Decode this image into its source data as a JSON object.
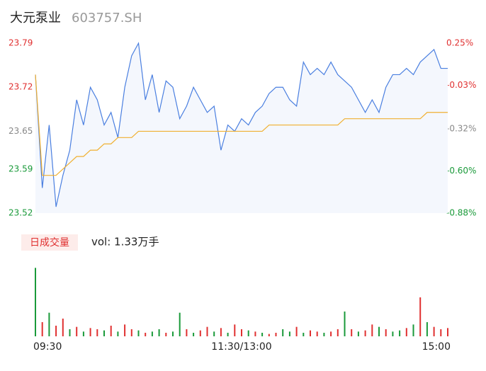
{
  "chart_data": {
    "type": "intraday",
    "title": "大元泵业",
    "code": "603757.SH",
    "x": [
      0,
      4,
      8,
      12,
      16,
      20,
      24,
      28,
      32,
      36,
      40,
      44,
      48,
      52,
      56,
      60,
      64,
      68,
      72,
      76,
      80,
      84,
      88,
      92,
      96,
      100,
      104,
      108,
      112,
      116,
      120,
      124,
      128,
      132,
      136,
      140,
      144,
      148,
      152,
      156,
      160,
      164,
      168,
      172,
      176,
      180,
      184,
      188,
      192,
      196,
      200,
      204,
      208,
      212,
      216,
      220,
      224,
      228,
      232,
      236,
      240
    ],
    "xlim": [
      0,
      240
    ],
    "xticks": [
      {
        "value": 0,
        "label": "09:30"
      },
      {
        "value": 120,
        "label": "11:30/13:00"
      },
      {
        "value": 240,
        "label": "15:00"
      }
    ],
    "ylim": [
      23.52,
      23.79
    ],
    "yticks": [
      23.79,
      23.72,
      23.65,
      23.59,
      23.52
    ],
    "ytick_colors": [
      "#e03030",
      "#e03030",
      "#888888",
      "#1a9a3a",
      "#1a9a3a"
    ],
    "y2lim": [
      -0.88,
      0.25
    ],
    "y2ticks": [
      {
        "value": 0.25,
        "label": "0.25%"
      },
      {
        "value": -0.03,
        "label": "-0.03%"
      },
      {
        "value": -0.32,
        "label": "-0.32%"
      },
      {
        "value": -0.6,
        "label": "-0.60%"
      },
      {
        "value": -0.88,
        "label": "-0.88%"
      }
    ],
    "series": [
      {
        "name": "price",
        "color": "#4a7fe0",
        "values": [
          23.74,
          23.56,
          23.66,
          23.53,
          23.58,
          23.62,
          23.7,
          23.66,
          23.72,
          23.7,
          23.66,
          23.68,
          23.64,
          23.72,
          23.77,
          23.79,
          23.7,
          23.74,
          23.68,
          23.73,
          23.72,
          23.67,
          23.69,
          23.72,
          23.7,
          23.68,
          23.69,
          23.62,
          23.66,
          23.65,
          23.67,
          23.66,
          23.68,
          23.69,
          23.71,
          23.72,
          23.72,
          23.7,
          23.69,
          23.76,
          23.74,
          23.75,
          23.74,
          23.76,
          23.74,
          23.73,
          23.72,
          23.7,
          23.68,
          23.7,
          23.68,
          23.72,
          23.74,
          23.74,
          23.75,
          23.74,
          23.76,
          23.77,
          23.78,
          23.75,
          23.75
        ]
      },
      {
        "name": "average",
        "color": "#f0b030",
        "values": [
          23.74,
          23.58,
          23.58,
          23.58,
          23.59,
          23.6,
          23.61,
          23.61,
          23.62,
          23.62,
          23.63,
          23.63,
          23.64,
          23.64,
          23.64,
          23.65,
          23.65,
          23.65,
          23.65,
          23.65,
          23.65,
          23.65,
          23.65,
          23.65,
          23.65,
          23.65,
          23.65,
          23.65,
          23.65,
          23.65,
          23.65,
          23.65,
          23.65,
          23.65,
          23.66,
          23.66,
          23.66,
          23.66,
          23.66,
          23.66,
          23.66,
          23.66,
          23.66,
          23.66,
          23.66,
          23.67,
          23.67,
          23.67,
          23.67,
          23.67,
          23.67,
          23.67,
          23.67,
          23.67,
          23.67,
          23.67,
          23.67,
          23.68,
          23.68,
          23.68,
          23.68
        ]
      }
    ],
    "volume_tag": "日成交量",
    "volume_label": "vol: 1.33万手",
    "volume_ylim": [
      0,
      600
    ],
    "volume": {
      "values": [
        580,
        120,
        200,
        90,
        150,
        60,
        80,
        40,
        70,
        60,
        50,
        90,
        40,
        100,
        60,
        50,
        30,
        40,
        60,
        30,
        40,
        200,
        60,
        30,
        50,
        80,
        40,
        70,
        30,
        100,
        60,
        50,
        40,
        30,
        20,
        30,
        60,
        40,
        80,
        30,
        50,
        40,
        30,
        40,
        60,
        210,
        60,
        40,
        50,
        100,
        80,
        60,
        40,
        50,
        70,
        100,
        330,
        120,
        80,
        60,
        70
      ],
      "colors": [
        "#1a9a3a",
        "#e03030",
        "#1a9a3a",
        "#e03030",
        "#e03030",
        "#1a9a3a",
        "#e03030",
        "#1a9a3a",
        "#e03030",
        "#e03030",
        "#1a9a3a",
        "#e03030",
        "#1a9a3a",
        "#e03030",
        "#e03030",
        "#1a9a3a",
        "#e03030",
        "#1a9a3a",
        "#1a9a3a",
        "#e03030",
        "#1a9a3a",
        "#1a9a3a",
        "#e03030",
        "#1a9a3a",
        "#e03030",
        "#e03030",
        "#1a9a3a",
        "#e03030",
        "#1a9a3a",
        "#e03030",
        "#e03030",
        "#1a9a3a",
        "#e03030",
        "#1a9a3a",
        "#e03030",
        "#e03030",
        "#1a9a3a",
        "#1a9a3a",
        "#e03030",
        "#1a9a3a",
        "#e03030",
        "#e03030",
        "#1a9a3a",
        "#e03030",
        "#e03030",
        "#1a9a3a",
        "#e03030",
        "#1a9a3a",
        "#e03030",
        "#e03030",
        "#1a9a3a",
        "#e03030",
        "#1a9a3a",
        "#1a9a3a",
        "#e03030",
        "#1a9a3a",
        "#e03030",
        "#1a9a3a",
        "#e03030",
        "#e03030",
        "#e03030"
      ]
    }
  }
}
